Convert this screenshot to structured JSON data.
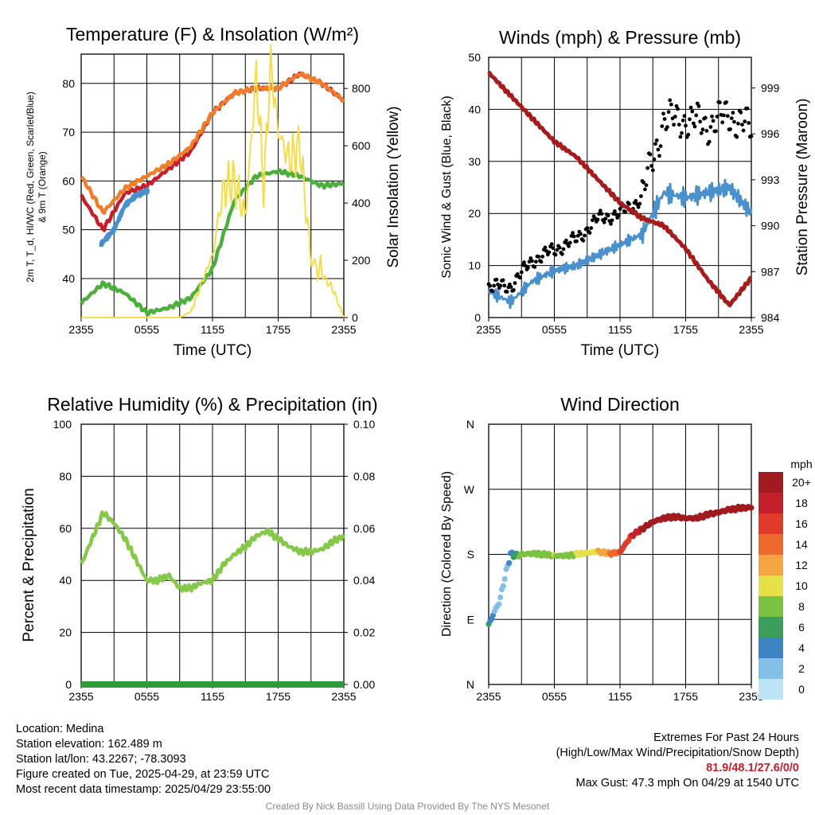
{
  "chart_data": [
    {
      "type": "line",
      "title": "Temperature (F) & Insolation (W/m²)",
      "xlabel": "Time (UTC)",
      "ylabel_left": "2m T, T_d, HI/WC (Red, Green, Scarlet/Blue) & 9m T (Orange)",
      "ylabel_right": "Solar Insolation (Yellow)",
      "x_ticks": [
        "2355",
        "0555",
        "1155",
        "1755",
        "2355"
      ],
      "ylim": [
        32,
        86
      ],
      "y_ticks": [
        40,
        50,
        60,
        70,
        80
      ],
      "ylim_right": [
        0,
        920
      ],
      "y_ticks_right": [
        0,
        200,
        400,
        600,
        800
      ],
      "x_hours": [
        0,
        2,
        4,
        6,
        8,
        10,
        12,
        14,
        16,
        18,
        20,
        22,
        24
      ],
      "series": [
        {
          "name": "2m T",
          "color": "#c41f2a",
          "axis": "left",
          "values": [
            57.0,
            50.0,
            57.5,
            59.0,
            62.5,
            66.0,
            74.0,
            78.0,
            79.0,
            79.0,
            82.0,
            80.0,
            76.5
          ]
        },
        {
          "name": "9m T",
          "color": "#f07d2a",
          "axis": "left",
          "values": [
            61.0,
            53.5,
            58.5,
            61.0,
            63.5,
            67.0,
            74.0,
            78.0,
            79.0,
            79.0,
            82.0,
            80.0,
            76.5
          ]
        },
        {
          "name": "HI/WC",
          "color": "#4a90cc",
          "axis": "left",
          "x_hours": [
            1.8,
            3.0,
            4.0,
            5.0,
            6.1
          ],
          "values": [
            47.0,
            50.0,
            55.0,
            57.0,
            58.0
          ]
        },
        {
          "name": "T_d",
          "color": "#4cae3c",
          "axis": "left",
          "values": [
            35.0,
            39.0,
            37.0,
            33.0,
            34.0,
            36.0,
            42.0,
            56.0,
            61.0,
            62.0,
            61.0,
            59.0,
            59.5
          ]
        },
        {
          "name": "Solar Insolation",
          "color": "#f5dc49",
          "axis": "right",
          "x_hours": [
            0,
            9,
            10,
            11,
            12,
            13,
            14,
            15,
            16,
            16.7,
            17.3,
            18,
            19,
            20,
            21,
            22,
            23,
            24
          ],
          "values": [
            0,
            0,
            20,
            120,
            220,
            450,
            480,
            350,
            850,
            450,
            890,
            650,
            550,
            600,
            200,
            150,
            100,
            0
          ]
        }
      ]
    },
    {
      "type": "line",
      "title": "Winds (mph) & Pressure (mb)",
      "xlabel": "Time (UTC)",
      "ylabel_left": "Sonic Wind & Gust (Blue, Black)",
      "ylabel_right": "Station Pressure (Maroon)",
      "x_ticks": [
        "2355",
        "0555",
        "1155",
        "1755",
        "2355"
      ],
      "ylim": [
        0,
        50
      ],
      "y_ticks": [
        0,
        10,
        20,
        30,
        40,
        50
      ],
      "ylim_right": [
        984,
        1001
      ],
      "y_ticks_right": [
        984,
        987,
        990,
        993,
        996,
        999
      ],
      "x_hours": [
        0,
        2,
        4,
        6,
        8,
        10,
        12,
        14,
        16,
        18,
        20,
        22,
        24
      ],
      "series": [
        {
          "name": "Sonic Wind",
          "color": "#4a90cc",
          "axis": "left",
          "values": [
            5,
            3,
            7,
            9,
            10,
            12,
            14,
            16,
            24,
            23,
            24,
            25,
            20
          ]
        },
        {
          "name": "Gust",
          "color": "#000000",
          "axis": "left",
          "style": "points",
          "values": [
            6,
            6,
            11,
            13,
            15,
            19,
            20,
            23,
            38,
            38,
            37,
            39,
            36
          ]
        },
        {
          "name": "Station Pressure",
          "color": "#a51c1c",
          "axis": "right",
          "values": [
            1000.0,
            998.5,
            997.0,
            995.5,
            994.5,
            993.0,
            991.5,
            990.5,
            990.0,
            988.5,
            986.5,
            984.8,
            986.6
          ]
        }
      ]
    },
    {
      "type": "line",
      "title": "Relative Humidity (%) & Precipitation (in)",
      "xlabel": "",
      "ylabel_left": "Percent & Precipitation",
      "x_ticks": [
        "2355",
        "0555",
        "1155",
        "1755",
        "2355"
      ],
      "ylim": [
        0,
        100
      ],
      "y_ticks": [
        0,
        20,
        40,
        60,
        80,
        100
      ],
      "ylim_right": [
        0,
        0.1
      ],
      "y_ticks_right": [
        "0.00",
        "0.02",
        "0.04",
        "0.06",
        "0.08",
        "0.10"
      ],
      "x_hours": [
        0,
        1,
        2,
        3,
        4,
        5,
        6,
        7,
        8,
        9,
        10,
        11,
        12,
        13,
        14,
        15,
        16,
        17,
        18,
        19,
        20,
        21,
        22,
        23,
        24
      ],
      "series": [
        {
          "name": "Relative Humidity",
          "color": "#86c84a",
          "axis": "left",
          "values": [
            46,
            56,
            66,
            62,
            56,
            48,
            40,
            40,
            42,
            37,
            37,
            39,
            40,
            46,
            50,
            53,
            57,
            59,
            56,
            53,
            51,
            51,
            52,
            55,
            57
          ]
        },
        {
          "name": "Precipitation",
          "color": "#2e9b3a",
          "axis": "right",
          "values": [
            0,
            0,
            0,
            0,
            0,
            0,
            0,
            0,
            0,
            0,
            0,
            0,
            0,
            0,
            0,
            0,
            0,
            0,
            0,
            0,
            0,
            0,
            0,
            0,
            0
          ]
        }
      ]
    },
    {
      "type": "scatter",
      "title": "Wind Direction",
      "xlabel": "",
      "ylabel_left": "Direction (Colored By Speed)",
      "x_ticks": [
        "2355",
        "0555",
        "1155",
        "1755",
        "2355"
      ],
      "y_ticks": [
        "N",
        "E",
        "S",
        "W",
        "N"
      ],
      "ylim": [
        0,
        360
      ],
      "colorbar": {
        "title": "mph",
        "labels": [
          "0",
          "2",
          "4",
          "6",
          "8",
          "10",
          "12",
          "14",
          "16",
          "18",
          "20+"
        ],
        "colors": [
          "#bde3f7",
          "#84bfe8",
          "#3e83c4",
          "#3b9e5c",
          "#7cc242",
          "#e6e049",
          "#f5a442",
          "#ee6a2c",
          "#e03a2d",
          "#c4202a",
          "#a01a1f"
        ]
      },
      "x_hours": [
        0,
        0.5,
        1,
        1.5,
        2,
        2.5,
        3,
        4,
        5,
        6,
        7,
        8,
        9,
        10,
        11,
        12,
        13,
        14,
        15,
        16,
        17,
        18,
        19,
        20,
        21,
        22,
        23,
        24
      ],
      "values": [
        82,
        100,
        115,
        150,
        180,
        178,
        180,
        181,
        180,
        178,
        178,
        180,
        182,
        184,
        181,
        183,
        205,
        215,
        225,
        230,
        232,
        230,
        230,
        235,
        238,
        242,
        244,
        245
      ],
      "speeds": [
        5,
        3,
        2,
        2,
        4,
        6,
        8,
        8,
        7,
        9,
        8,
        9,
        10,
        11,
        13,
        15,
        17,
        19,
        21,
        21,
        21,
        21,
        21,
        21,
        21,
        21,
        21,
        21
      ]
    }
  ],
  "info": {
    "location": "Location: Medina",
    "elevation": "Station elevation: 162.489 m",
    "latlon": "Station lat/lon: 43.2267; -78.3093",
    "created": "Figure created on Tue, 2025-04-29, at 23:59 UTC",
    "recent": "Most recent data timestamp: 2025/04/29 23:55:00"
  },
  "extremes": {
    "heading": "Extremes For Past 24 Hours",
    "subheading": "(High/Low/Max Wind/Precipitation/Snow Depth)",
    "values": "81.9/48.1/27.6/0/0",
    "gust": "Max Gust: 47.3 mph On 04/29 at 1540 UTC"
  },
  "credit": "Created By Nick Bassill Using Data Provided By The NYS Mesonet"
}
